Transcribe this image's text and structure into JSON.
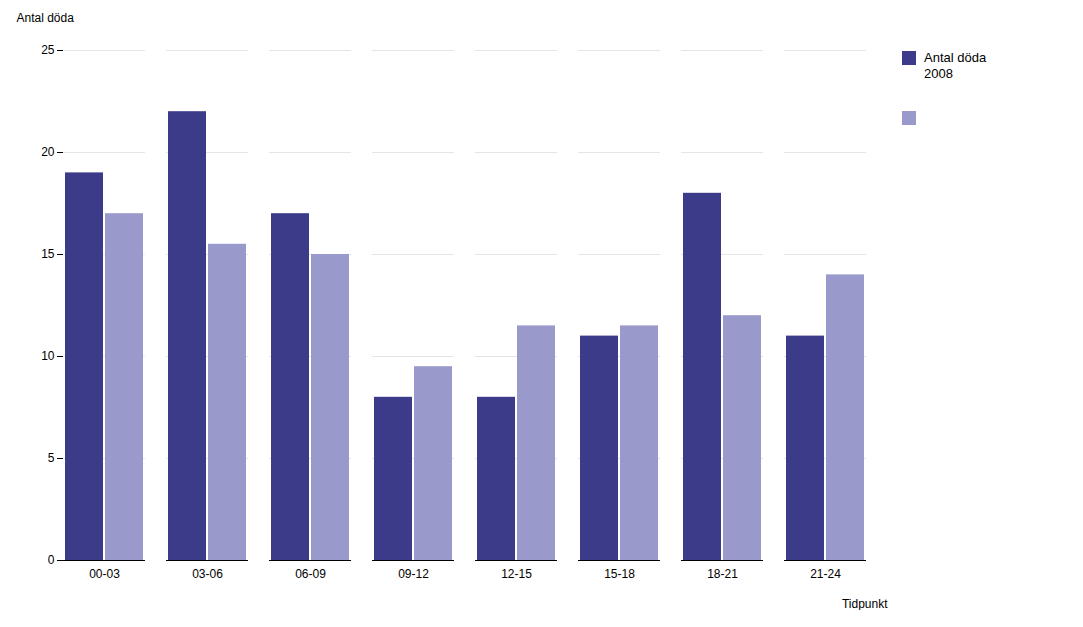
{
  "chart_data": {
    "type": "bar",
    "ylabel": "Antal döda",
    "xlabel": "Tidpunkt",
    "categories": [
      "00-03",
      "03-06",
      "06-09",
      "09-12",
      "12-15",
      "15-18",
      "18-21",
      "21-24"
    ],
    "series": [
      {
        "name": "Antal döda\n2008",
        "color": "#3b3b8a",
        "values": [
          19,
          22,
          17,
          8,
          8,
          11,
          18,
          11
        ]
      },
      {
        "name": " ",
        "color": "#9999cc",
        "values": [
          17,
          15.5,
          15,
          9.5,
          11.5,
          11.5,
          12,
          14
        ]
      }
    ],
    "ylim": [
      0,
      25
    ],
    "yticks": [
      0,
      5,
      10,
      15,
      20,
      25
    ],
    "grid": true,
    "legend": "right"
  }
}
